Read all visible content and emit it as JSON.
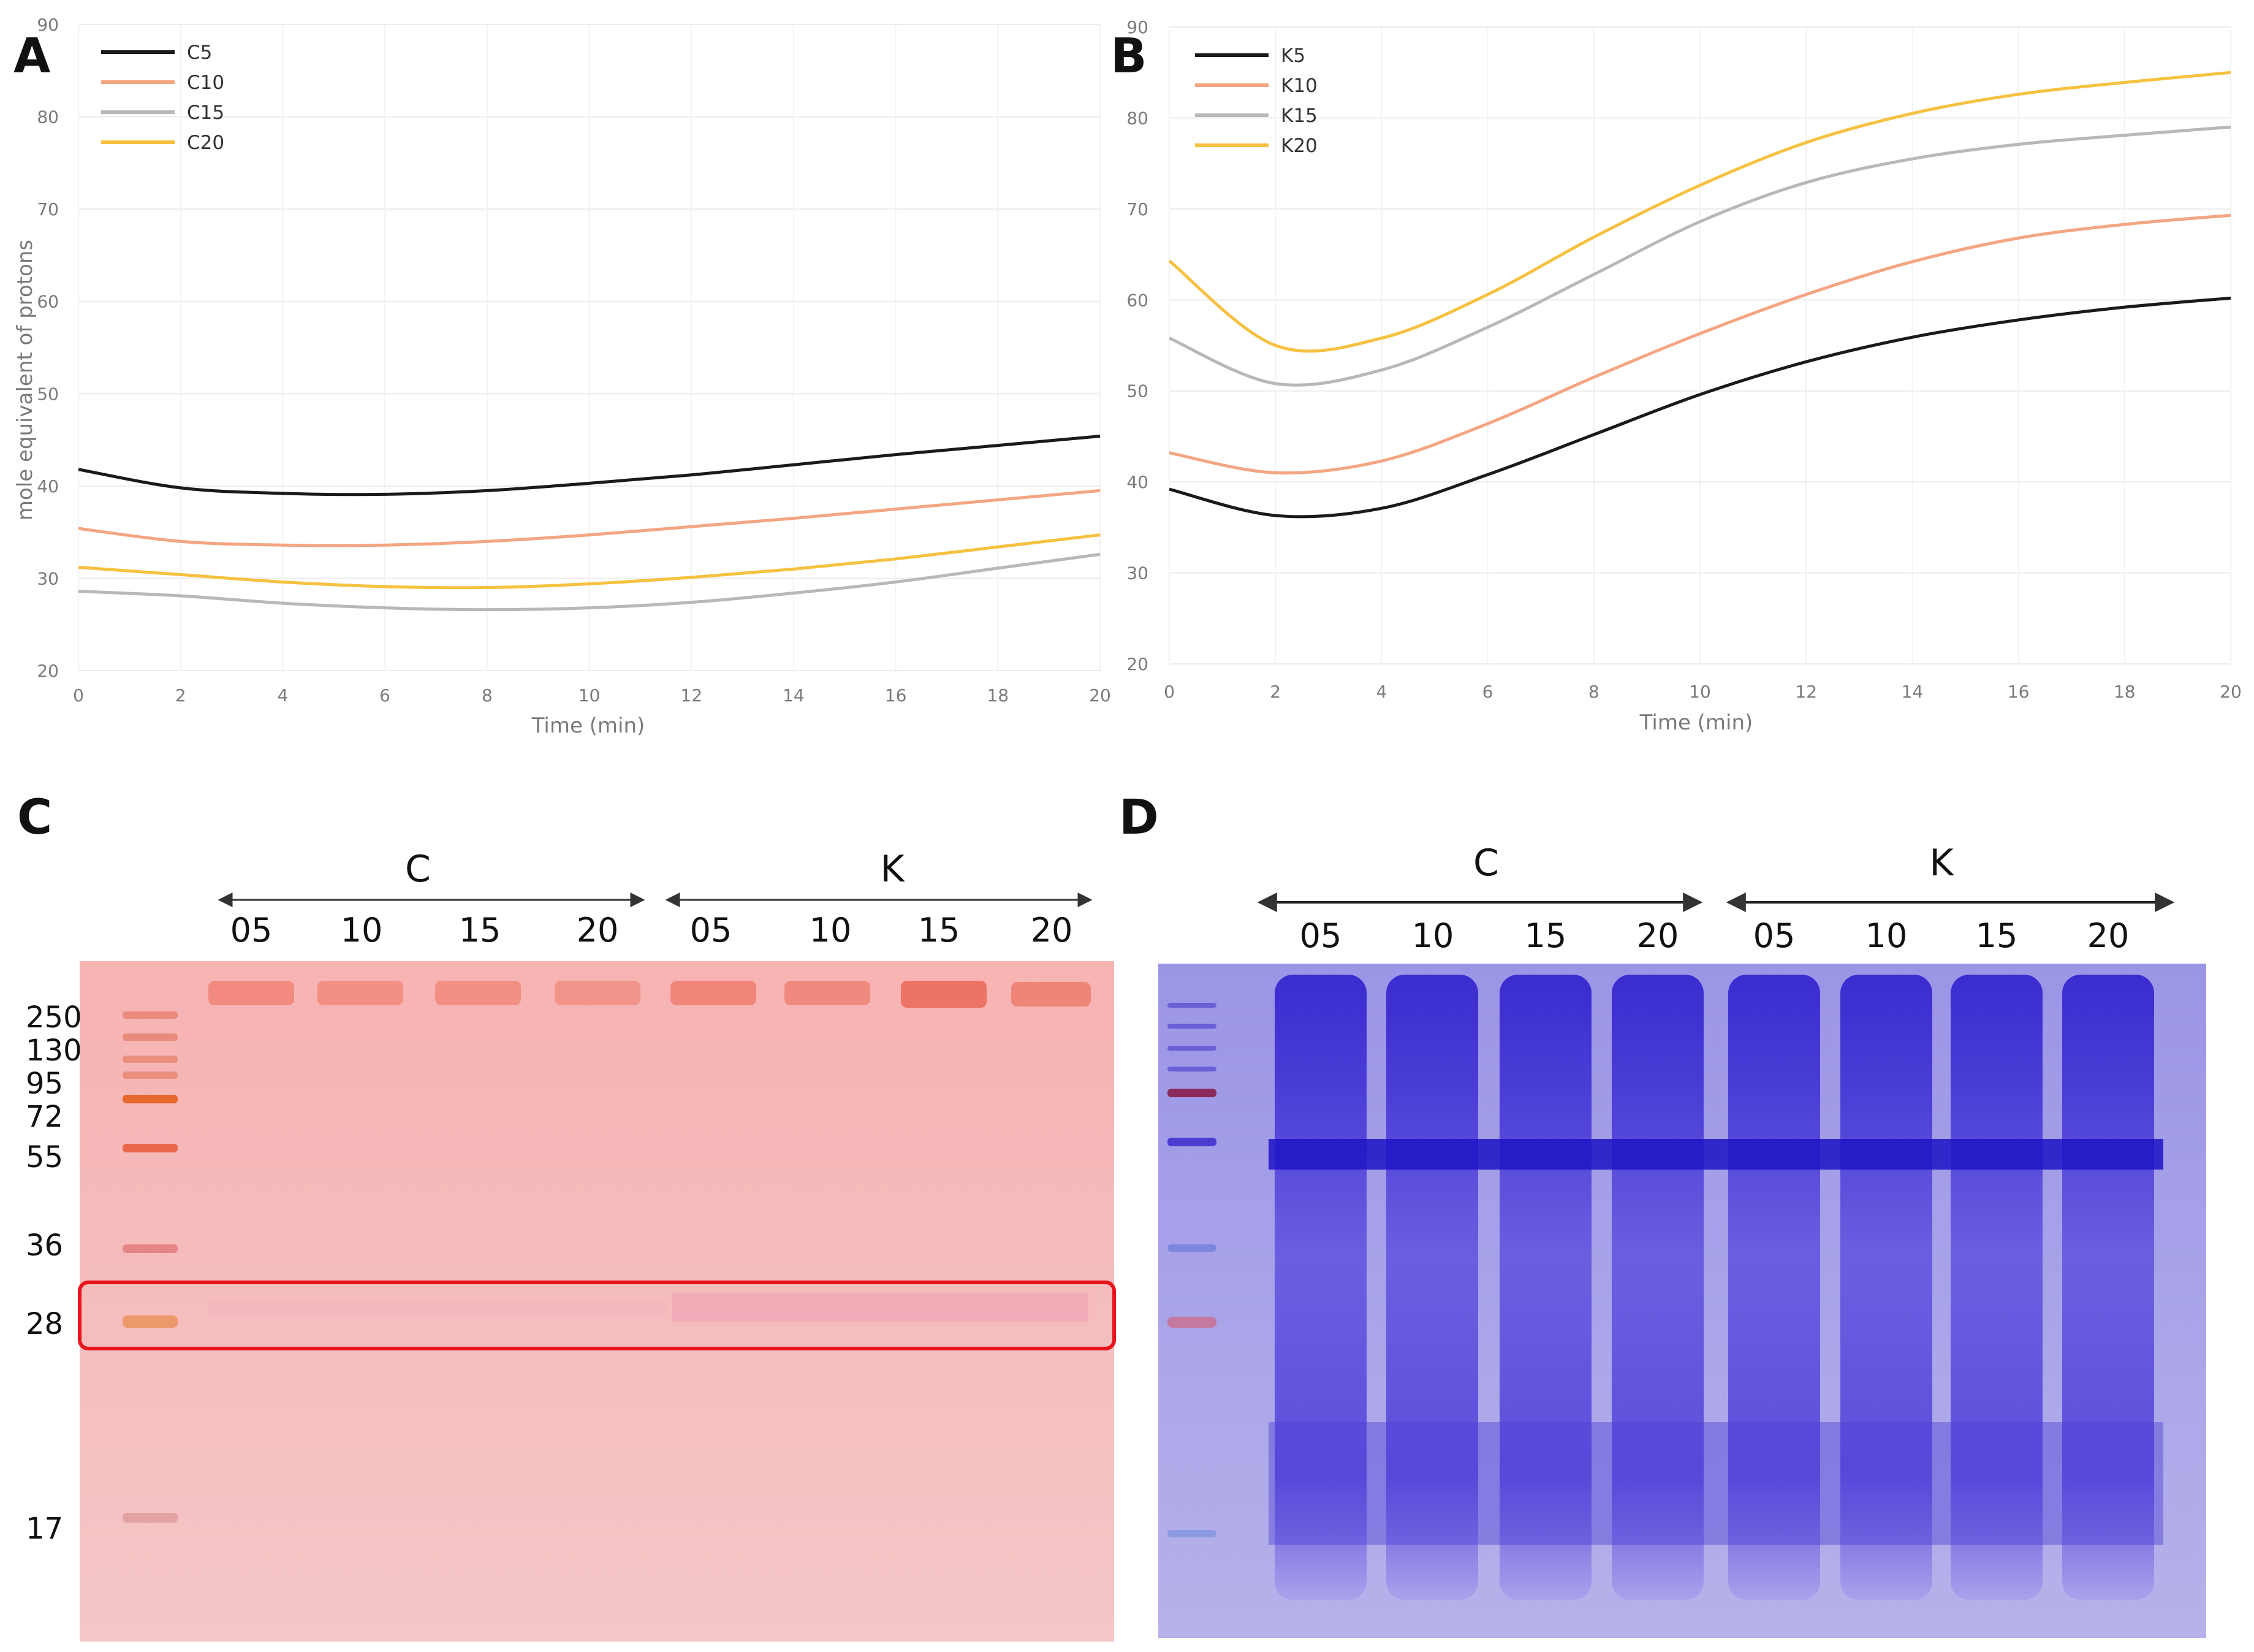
{
  "panels": {
    "A": "A",
    "B": "B",
    "C": "C",
    "D": "D"
  },
  "chart_data": [
    {
      "type": "line",
      "panel": "A",
      "title": "",
      "xlabel": "Time (min)",
      "ylabel": "mole equivalent of protons",
      "xlim": [
        0,
        20
      ],
      "ylim": [
        20,
        90
      ],
      "xticks": [
        0,
        2,
        4,
        6,
        8,
        10,
        12,
        14,
        16,
        18,
        20
      ],
      "yticks": [
        20,
        30,
        40,
        50,
        60,
        70,
        80,
        90
      ],
      "grid": true,
      "legend_position": "top-left",
      "x": [
        0,
        2,
        4,
        6,
        8,
        10,
        12,
        14,
        16,
        18,
        20
      ],
      "series": [
        {
          "name": "C5",
          "color": "#1a1a1a",
          "values": [
            41.8,
            39.8,
            39.2,
            39.1,
            39.5,
            40.3,
            41.2,
            42.3,
            43.4,
            44.4,
            45.4
          ]
        },
        {
          "name": "C10",
          "color": "#f4a582",
          "values": [
            35.4,
            34.0,
            33.6,
            33.6,
            34.0,
            34.7,
            35.6,
            36.5,
            37.5,
            38.5,
            39.5
          ]
        },
        {
          "name": "C15",
          "color": "#b8b8b8",
          "values": [
            28.6,
            28.1,
            27.3,
            26.8,
            26.6,
            26.8,
            27.4,
            28.4,
            29.6,
            31.1,
            32.6
          ]
        },
        {
          "name": "C20",
          "color": "#f6c141",
          "values": [
            31.2,
            30.4,
            29.6,
            29.1,
            29.0,
            29.4,
            30.1,
            31.0,
            32.1,
            33.4,
            34.7
          ]
        }
      ]
    },
    {
      "type": "line",
      "panel": "B",
      "title": "",
      "xlabel": "Time (min)",
      "ylabel": "",
      "xlim": [
        0,
        20
      ],
      "ylim": [
        20,
        90
      ],
      "xticks": [
        0,
        2,
        4,
        6,
        8,
        10,
        12,
        14,
        16,
        18,
        20
      ],
      "yticks": [
        20,
        30,
        40,
        50,
        60,
        70,
        80,
        90
      ],
      "grid": true,
      "legend_position": "top-left",
      "x": [
        0,
        2,
        4,
        6,
        8,
        10,
        12,
        14,
        16,
        18,
        20
      ],
      "series": [
        {
          "name": "K5",
          "color": "#1a1a1a",
          "values": [
            39.2,
            36.3,
            37.1,
            40.8,
            45.2,
            49.6,
            53.2,
            55.9,
            57.8,
            59.2,
            60.2
          ]
        },
        {
          "name": "K10",
          "color": "#f4a582",
          "values": [
            43.2,
            41.0,
            42.3,
            46.4,
            51.5,
            56.3,
            60.6,
            64.2,
            66.8,
            68.3,
            69.3
          ]
        },
        {
          "name": "K15",
          "color": "#b8b8b8",
          "values": [
            55.8,
            50.8,
            52.3,
            57.0,
            62.8,
            68.6,
            72.9,
            75.5,
            77.1,
            78.1,
            79.0
          ]
        },
        {
          "name": "K20",
          "color": "#f6c141",
          "values": [
            64.3,
            55.0,
            55.8,
            60.6,
            66.9,
            72.6,
            77.3,
            80.5,
            82.6,
            83.9,
            85.0
          ]
        }
      ]
    }
  ],
  "gels": {
    "C": {
      "group_labels": [
        "C",
        "K"
      ],
      "lane_labels": [
        "05",
        "10",
        "15",
        "20",
        "05",
        "10",
        "15",
        "20"
      ],
      "marker_labels": [
        "250",
        "130",
        "95",
        "72",
        "55",
        "36",
        "28",
        "17"
      ],
      "highlight_color": "#e8141b"
    },
    "D": {
      "group_labels": [
        "C",
        "K"
      ],
      "lane_labels": [
        "05",
        "10",
        "15",
        "20",
        "05",
        "10",
        "15",
        "20"
      ]
    }
  }
}
